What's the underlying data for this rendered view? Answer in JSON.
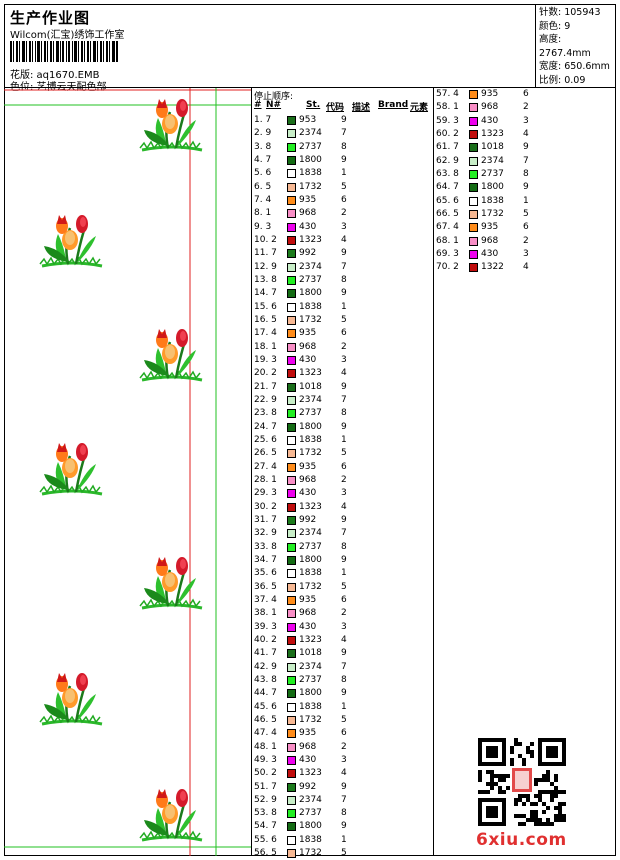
{
  "header": {
    "title": "生产作业图",
    "subtitle": "Wilcom(汇宝)绣饰工作室",
    "pattern_label": "花版: aq1670.EMB",
    "color_label": "色位: 艺博云天配色部"
  },
  "stats": {
    "stitches": "针数: 105943",
    "colors": "颜色: 9",
    "height": "高度: 2767.4mm",
    "width": "宽度: 650.6mm",
    "scale": "比例: 0.09"
  },
  "list": {
    "stop_label": "停止顺序:",
    "col_hash": "#",
    "col_no": "N#",
    "col_st": "St.",
    "col_code": "代码",
    "col_desc": "描述",
    "col_brand": "Brand",
    "col_elem": "元素"
  },
  "palette": {
    "953": "#1a6e1a",
    "2374": "#c8eec8",
    "2737": "#22ee22",
    "1800": "#136b13",
    "1838": "#ffffff",
    "1732": "#f7b893",
    "935": "#ff8c1a",
    "968": "#f88ec6",
    "430": "#ee00ee",
    "1323": "#c00c0c",
    "992": "#1b7a1b",
    "1018": "#1a6e1a",
    "1322": "#c00c0c"
  },
  "rows": [
    {
      "n": "1. 7",
      "c": "953",
      "s": "9"
    },
    {
      "n": "2. 9",
      "c": "2374",
      "s": "7"
    },
    {
      "n": "3. 8",
      "c": "2737",
      "s": "8"
    },
    {
      "n": "4. 7",
      "c": "1800",
      "s": "9"
    },
    {
      "n": "5. 6",
      "c": "1838",
      "s": "1"
    },
    {
      "n": "6. 5",
      "c": "1732",
      "s": "5"
    },
    {
      "n": "7. 4",
      "c": "935",
      "s": "6"
    },
    {
      "n": "8. 1",
      "c": "968",
      "s": "2"
    },
    {
      "n": "9. 3",
      "c": "430",
      "s": "3"
    },
    {
      "n": "10. 2",
      "c": "1323",
      "s": "4"
    },
    {
      "n": "11. 7",
      "c": "992",
      "s": "9"
    },
    {
      "n": "12. 9",
      "c": "2374",
      "s": "7"
    },
    {
      "n": "13. 8",
      "c": "2737",
      "s": "8"
    },
    {
      "n": "14. 7",
      "c": "1800",
      "s": "9"
    },
    {
      "n": "15. 6",
      "c": "1838",
      "s": "1"
    },
    {
      "n": "16. 5",
      "c": "1732",
      "s": "5"
    },
    {
      "n": "17. 4",
      "c": "935",
      "s": "6"
    },
    {
      "n": "18. 1",
      "c": "968",
      "s": "2"
    },
    {
      "n": "19. 3",
      "c": "430",
      "s": "3"
    },
    {
      "n": "20. 2",
      "c": "1323",
      "s": "4"
    },
    {
      "n": "21. 7",
      "c": "1018",
      "s": "9"
    },
    {
      "n": "22. 9",
      "c": "2374",
      "s": "7"
    },
    {
      "n": "23. 8",
      "c": "2737",
      "s": "8"
    },
    {
      "n": "24. 7",
      "c": "1800",
      "s": "9"
    },
    {
      "n": "25. 6",
      "c": "1838",
      "s": "1"
    },
    {
      "n": "26. 5",
      "c": "1732",
      "s": "5"
    },
    {
      "n": "27. 4",
      "c": "935",
      "s": "6"
    },
    {
      "n": "28. 1",
      "c": "968",
      "s": "2"
    },
    {
      "n": "29. 3",
      "c": "430",
      "s": "3"
    },
    {
      "n": "30. 2",
      "c": "1323",
      "s": "4"
    },
    {
      "n": "31. 7",
      "c": "992",
      "s": "9"
    },
    {
      "n": "32. 9",
      "c": "2374",
      "s": "7"
    },
    {
      "n": "33. 8",
      "c": "2737",
      "s": "8"
    },
    {
      "n": "34. 7",
      "c": "1800",
      "s": "9"
    },
    {
      "n": "35. 6",
      "c": "1838",
      "s": "1"
    },
    {
      "n": "36. 5",
      "c": "1732",
      "s": "5"
    },
    {
      "n": "37. 4",
      "c": "935",
      "s": "6"
    },
    {
      "n": "38. 1",
      "c": "968",
      "s": "2"
    },
    {
      "n": "39. 3",
      "c": "430",
      "s": "3"
    },
    {
      "n": "40. 2",
      "c": "1323",
      "s": "4"
    },
    {
      "n": "41. 7",
      "c": "1018",
      "s": "9"
    },
    {
      "n": "42. 9",
      "c": "2374",
      "s": "7"
    },
    {
      "n": "43. 8",
      "c": "2737",
      "s": "8"
    },
    {
      "n": "44. 7",
      "c": "1800",
      "s": "9"
    },
    {
      "n": "45. 6",
      "c": "1838",
      "s": "1"
    },
    {
      "n": "46. 5",
      "c": "1732",
      "s": "5"
    },
    {
      "n": "47. 4",
      "c": "935",
      "s": "6"
    },
    {
      "n": "48. 1",
      "c": "968",
      "s": "2"
    },
    {
      "n": "49. 3",
      "c": "430",
      "s": "3"
    },
    {
      "n": "50. 2",
      "c": "1323",
      "s": "4"
    },
    {
      "n": "51. 7",
      "c": "992",
      "s": "9"
    },
    {
      "n": "52. 9",
      "c": "2374",
      "s": "7"
    },
    {
      "n": "53. 8",
      "c": "2737",
      "s": "8"
    },
    {
      "n": "54. 7",
      "c": "1800",
      "s": "9"
    },
    {
      "n": "55. 6",
      "c": "1838",
      "s": "1"
    },
    {
      "n": "56. 5",
      "c": "1732",
      "s": "5"
    },
    {
      "n": "57. 4",
      "c": "935",
      "s": "6"
    },
    {
      "n": "58. 1",
      "c": "968",
      "s": "2"
    },
    {
      "n": "59. 3",
      "c": "430",
      "s": "3"
    },
    {
      "n": "60. 2",
      "c": "1323",
      "s": "4"
    },
    {
      "n": "61. 7",
      "c": "1018",
      "s": "9"
    },
    {
      "n": "62. 9",
      "c": "2374",
      "s": "7"
    },
    {
      "n": "63. 8",
      "c": "2737",
      "s": "8"
    },
    {
      "n": "64. 7",
      "c": "1800",
      "s": "9"
    },
    {
      "n": "65. 6",
      "c": "1838",
      "s": "1"
    },
    {
      "n": "66. 5",
      "c": "1732",
      "s": "5"
    },
    {
      "n": "67. 4",
      "c": "935",
      "s": "6"
    },
    {
      "n": "68. 1",
      "c": "968",
      "s": "2"
    },
    {
      "n": "69. 3",
      "c": "430",
      "s": "3"
    },
    {
      "n": "70. 2",
      "c": "1322",
      "s": "4"
    }
  ],
  "footer": {
    "site": "6xiu.com"
  }
}
